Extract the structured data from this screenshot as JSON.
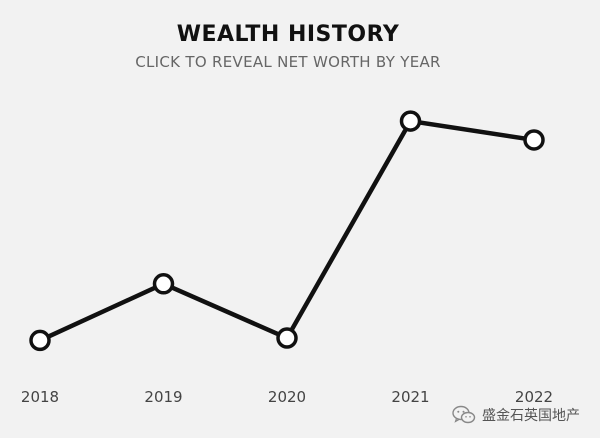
{
  "chart_data": {
    "type": "line",
    "title": "WEALTH HISTORY",
    "subtitle": "CLICK TO REVEAL NET WORTH BY YEAR",
    "categories": [
      "2018",
      "2019",
      "2020",
      "2021",
      "2022"
    ],
    "values": [
      1.0,
      3.4,
      1.1,
      10.3,
      9.5
    ],
    "ylim": [
      0,
      10.6
    ],
    "grid": false,
    "line_color": "#111111",
    "marker_fill": "#ffffff"
  },
  "watermark": {
    "icon": "wechat-icon",
    "text": "盛金石英国地产"
  },
  "colors": {
    "background": "#f2f2f2",
    "title": "#111111",
    "subtitle": "#666666",
    "axis_text": "#444444"
  }
}
